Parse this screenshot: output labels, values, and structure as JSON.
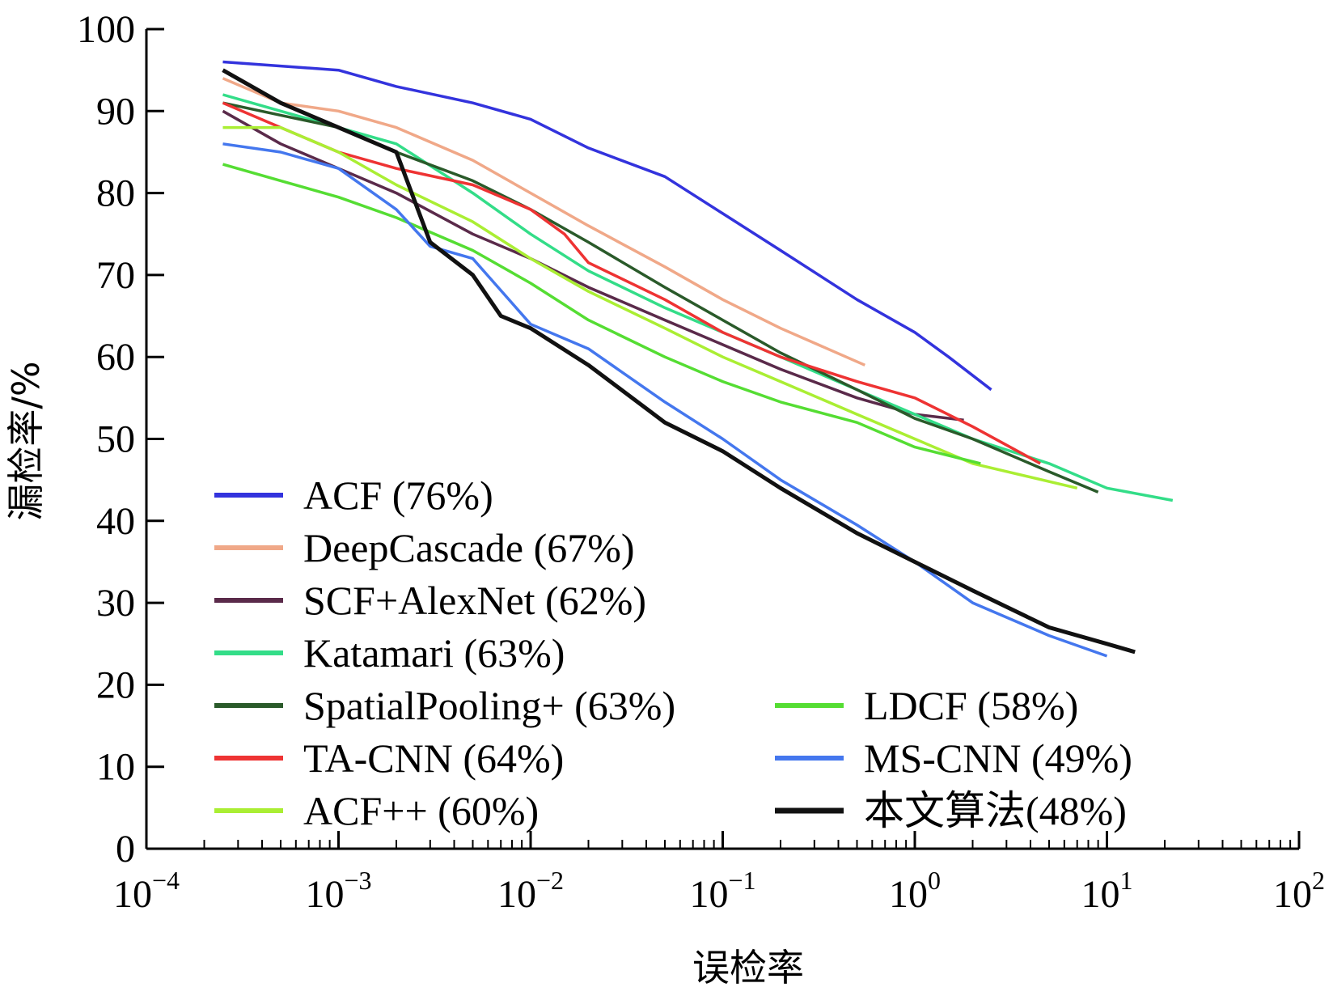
{
  "chart_data": {
    "type": "line",
    "xlabel": "误检率",
    "ylabel": "漏检率/%",
    "xscale": "log",
    "xlim": [
      0.0001,
      100
    ],
    "ylim": [
      0,
      100
    ],
    "x_ticks": [
      {
        "base": "10",
        "exp": "−4",
        "value": 0.0001
      },
      {
        "base": "10",
        "exp": "−3",
        "value": 0.001
      },
      {
        "base": "10",
        "exp": "−2",
        "value": 0.01
      },
      {
        "base": "10",
        "exp": "−1",
        "value": 0.1
      },
      {
        "base": "10",
        "exp": "0",
        "value": 1
      },
      {
        "base": "10",
        "exp": "1",
        "value": 10
      },
      {
        "base": "10",
        "exp": "2",
        "value": 100
      }
    ],
    "y_ticks": [
      "0",
      "10",
      "20",
      "30",
      "40",
      "50",
      "60",
      "70",
      "80",
      "90",
      "100"
    ],
    "legend_position": "bottom-left, two columns",
    "series": [
      {
        "name": "ACF (76%)",
        "color": "#3333dd",
        "x": [
          0.00025,
          0.0005,
          0.001,
          0.002,
          0.005,
          0.01,
          0.02,
          0.05,
          0.1,
          0.2,
          0.5,
          1,
          1.5,
          2.5
        ],
        "y": [
          96,
          95.5,
          95,
          93,
          91,
          89,
          85.5,
          82,
          77.5,
          73,
          67,
          63,
          60,
          56
        ]
      },
      {
        "name": "DeepCascade (67%)",
        "color": "#f0a888",
        "x": [
          0.00025,
          0.0005,
          0.001,
          0.002,
          0.005,
          0.01,
          0.02,
          0.05,
          0.1,
          0.2,
          0.55
        ],
        "y": [
          94,
          91,
          90,
          88,
          84,
          80,
          76,
          71,
          67,
          63.5,
          59
        ]
      },
      {
        "name": "SCF+AlexNet (62%)",
        "color": "#5a2a4a",
        "x": [
          0.00025,
          0.0005,
          0.001,
          0.002,
          0.005,
          0.01,
          0.02,
          0.05,
          0.1,
          0.2,
          0.5,
          1,
          1.8
        ],
        "y": [
          90,
          86,
          83,
          80,
          75,
          72,
          68.5,
          64.5,
          61.5,
          58.5,
          55,
          53,
          52.3
        ]
      },
      {
        "name": "Katamari (63%)",
        "color": "#33dd88",
        "x": [
          0.00025,
          0.0005,
          0.001,
          0.002,
          0.005,
          0.01,
          0.02,
          0.05,
          0.1,
          0.2,
          0.5,
          1,
          2,
          5,
          10,
          22
        ],
        "y": [
          92,
          90,
          88,
          86,
          80,
          75,
          70.5,
          66,
          63,
          60,
          56,
          53,
          50,
          47,
          44,
          42.5
        ]
      },
      {
        "name": "SpatialPooling+ (63%)",
        "color": "#2a5a2a",
        "x": [
          0.00025,
          0.0005,
          0.001,
          0.002,
          0.005,
          0.01,
          0.02,
          0.05,
          0.1,
          0.2,
          0.5,
          1,
          2,
          5,
          9
        ],
        "y": [
          91,
          89.5,
          88,
          85,
          81.5,
          78,
          74,
          68.5,
          64.5,
          60.5,
          56,
          52.5,
          50,
          46,
          43.5
        ]
      },
      {
        "name": "TA-CNN (64%)",
        "color": "#ee3333",
        "x": [
          0.00025,
          0.0005,
          0.001,
          0.002,
          0.005,
          0.01,
          0.015,
          0.02,
          0.05,
          0.1,
          0.2,
          0.5,
          1,
          2,
          4.5
        ],
        "y": [
          91,
          88,
          85,
          83,
          81,
          78,
          75,
          71.5,
          67,
          63,
          60,
          57,
          55,
          51.5,
          47
        ]
      },
      {
        "name": "ACF++ (60%)",
        "color": "#aaee33",
        "x": [
          0.00025,
          0.0005,
          0.001,
          0.002,
          0.005,
          0.01,
          0.02,
          0.05,
          0.1,
          0.2,
          0.5,
          1,
          2,
          7
        ],
        "y": [
          88,
          88,
          85,
          81,
          76.5,
          72,
          68,
          63.5,
          60,
          57,
          53,
          50,
          47,
          44
        ]
      },
      {
        "name": "LDCF (58%)",
        "color": "#55dd33",
        "x": [
          0.00025,
          0.0005,
          0.001,
          0.002,
          0.005,
          0.01,
          0.02,
          0.05,
          0.1,
          0.2,
          0.5,
          1,
          2.2
        ],
        "y": [
          83.5,
          81.5,
          79.5,
          77,
          73,
          69,
          64.5,
          60,
          57,
          54.5,
          52,
          49,
          47
        ]
      },
      {
        "name": "MS-CNN (49%)",
        "color": "#4477ee",
        "x": [
          0.00025,
          0.0005,
          0.001,
          0.002,
          0.003,
          0.005,
          0.01,
          0.02,
          0.05,
          0.1,
          0.2,
          0.5,
          1,
          2,
          5,
          10
        ],
        "y": [
          86,
          85,
          83,
          78,
          73.5,
          72,
          64,
          61,
          54.5,
          50,
          45,
          39.5,
          35,
          30,
          26,
          23.5
        ]
      },
      {
        "name": "本文算法(48%)",
        "color": "#111111",
        "x": [
          0.00025,
          0.0005,
          0.001,
          0.002,
          0.003,
          0.005,
          0.007,
          0.01,
          0.02,
          0.05,
          0.1,
          0.2,
          0.5,
          1,
          2,
          5,
          10,
          14
        ],
        "y": [
          95,
          91,
          88,
          85,
          74,
          70,
          65,
          63.5,
          59,
          52,
          48.5,
          44,
          38.5,
          35,
          31.5,
          27,
          25,
          24
        ]
      }
    ]
  }
}
